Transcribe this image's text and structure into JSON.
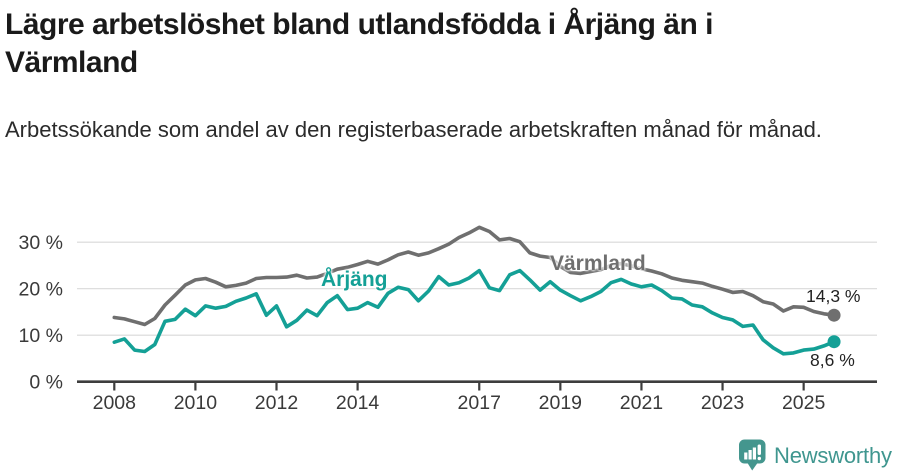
{
  "chart_data": {
    "type": "line",
    "title": "Lägre arbetslöshet bland utlandsfödda i Årjäng än i Värmland",
    "subtitle": "Arbetssökande som andel av den registerbaserade arbetskraften månad för månad.",
    "unit": "%",
    "x_axis": {
      "tick_years": [
        2008,
        2010,
        2012,
        2014,
        2017,
        2019,
        2021,
        2023,
        2025
      ],
      "tick_labels": [
        "2008",
        "2010",
        "2012",
        "2014",
        "2017",
        "2019",
        "2021",
        "2023",
        "2025"
      ],
      "range": [
        2007.1,
        2026.8
      ]
    },
    "y_axis": {
      "ticks": [
        0,
        10,
        20,
        30
      ],
      "tick_labels": [
        "0 %",
        "10 %",
        "20 %",
        "30 %"
      ],
      "range": [
        0,
        34
      ],
      "grid": true
    },
    "x_start": 2008.0,
    "x_step_years": 0.25,
    "legend": "inline-labels-on-lines",
    "series": [
      {
        "name": "Värmland",
        "color": "#6f6f6f",
        "end_value": 14.3,
        "end_label": "14,3 %",
        "values": [
          13.8,
          13.5,
          12.9,
          12.3,
          13.6,
          16.5,
          18.6,
          20.8,
          21.9,
          22.2,
          21.4,
          20.4,
          20.7,
          21.2,
          22.2,
          22.4,
          22.4,
          22.5,
          22.9,
          22.3,
          22.5,
          23.3,
          24.2,
          24.6,
          25.2,
          25.9,
          25.3,
          26.2,
          27.3,
          27.9,
          27.2,
          27.7,
          28.6,
          29.6,
          31.0,
          32.0,
          33.2,
          32.3,
          30.5,
          30.8,
          30.1,
          27.7,
          27.0,
          26.7,
          24.8,
          23.5,
          23.3,
          23.7,
          24.1,
          25.0,
          25.4,
          24.9,
          24.3,
          23.8,
          23.2,
          22.3,
          21.8,
          21.5,
          21.2,
          20.5,
          19.9,
          19.2,
          19.4,
          18.5,
          17.2,
          16.7,
          15.2,
          16.1,
          16.0,
          15.1,
          14.6,
          14.3
        ]
      },
      {
        "name": "Årjäng",
        "color": "#14a096",
        "end_value": 8.6,
        "end_label": "8,6 %",
        "values": [
          8.5,
          9.2,
          6.8,
          6.5,
          8.0,
          13.0,
          13.4,
          15.6,
          14.2,
          16.3,
          15.8,
          16.2,
          17.3,
          18.0,
          18.9,
          14.3,
          16.3,
          11.8,
          13.2,
          15.4,
          14.2,
          17.0,
          18.5,
          15.5,
          15.8,
          17.0,
          16.0,
          19.0,
          20.3,
          19.8,
          17.4,
          19.5,
          22.6,
          20.8,
          21.3,
          22.3,
          23.9,
          20.2,
          19.6,
          23.0,
          23.9,
          21.9,
          19.7,
          21.5,
          19.7,
          18.5,
          17.4,
          18.3,
          19.4,
          21.3,
          22.0,
          21.0,
          20.4,
          20.8,
          19.6,
          18.0,
          17.8,
          16.5,
          16.1,
          14.8,
          13.8,
          13.3,
          11.9,
          12.2,
          9.0,
          7.3,
          6.0,
          6.2,
          6.8,
          7.0,
          7.7,
          8.6
        ]
      }
    ]
  },
  "branding": {
    "brand_name": "Newsworthy",
    "brand_color": "#3f968f",
    "logo_icon": "newsworthy-pin-barchart-icon"
  }
}
